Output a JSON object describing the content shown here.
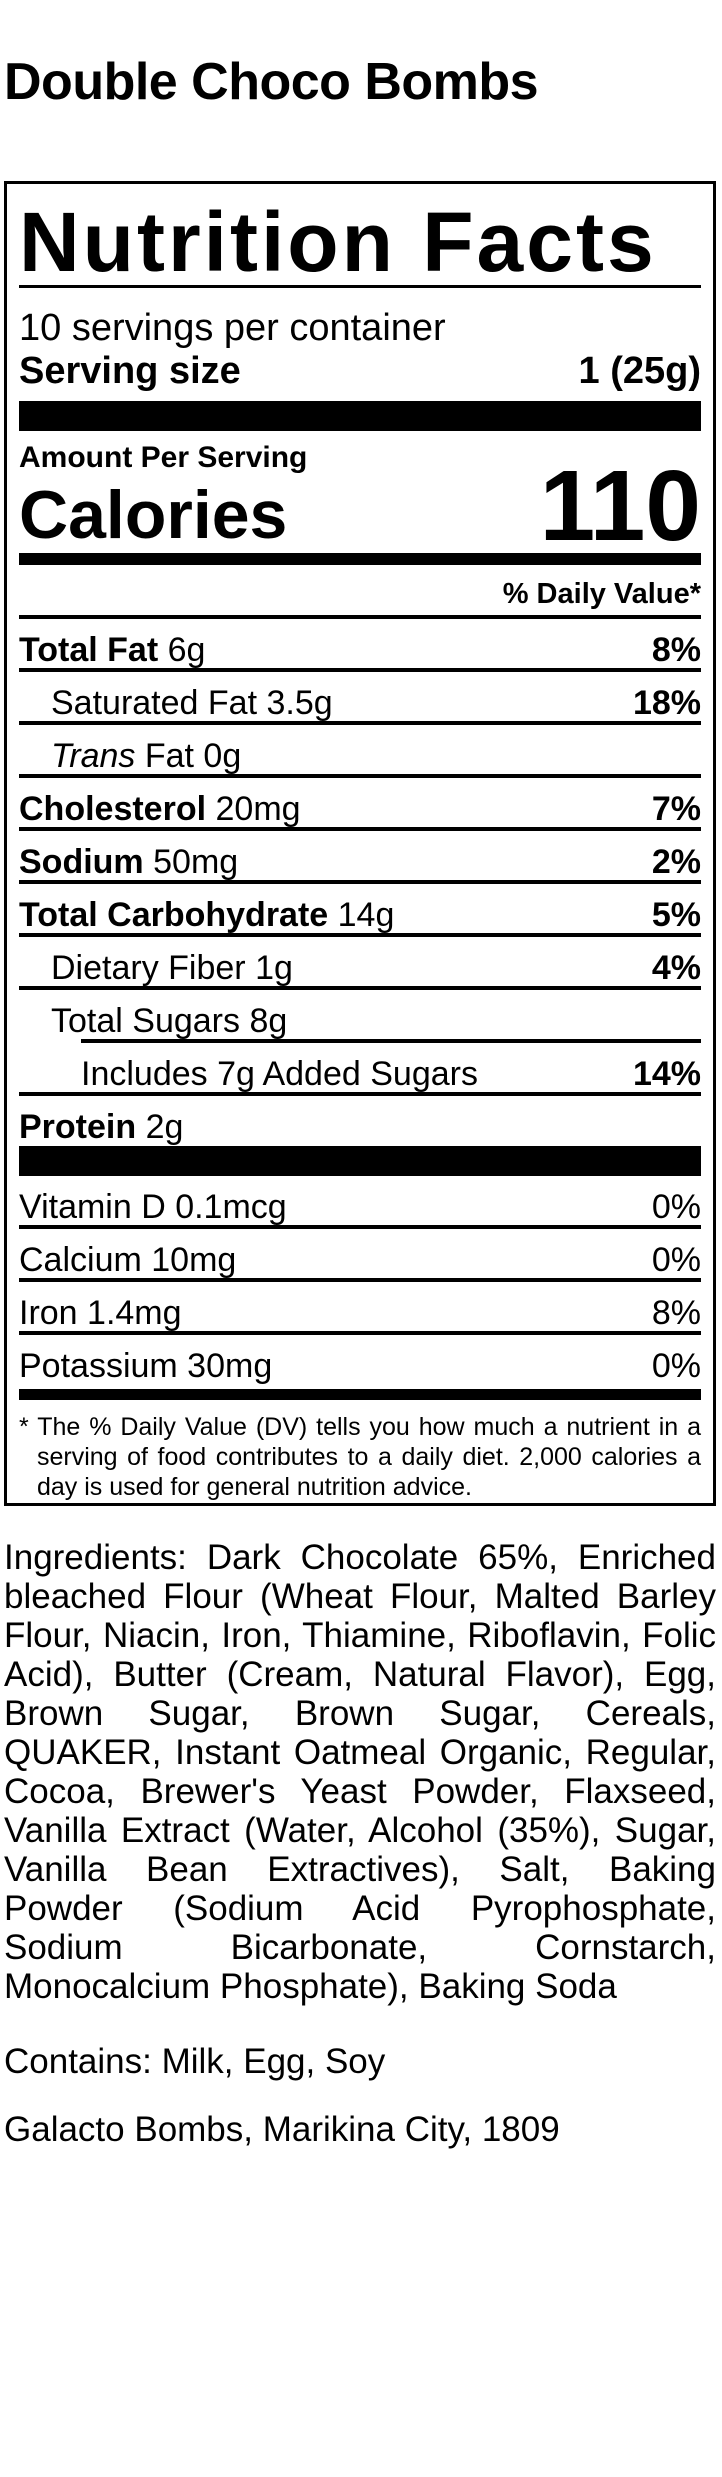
{
  "product_name": "Double Choco Bombs",
  "label": {
    "heading": "Nutrition Facts",
    "servings_per_container": "10 servings per container",
    "serving_size_label": "Serving size",
    "serving_size_value": "1 (25g)",
    "amount_per_serving": "Amount Per Serving",
    "calories_label": "Calories",
    "calories_value": "110",
    "daily_value_header": "% Daily Value*",
    "nutrients": [
      {
        "name": "Total Fat",
        "amount": "6g",
        "dv": "8%"
      },
      {
        "name": "Saturated Fat",
        "amount": "3.5g",
        "dv": "18%"
      },
      {
        "name": "Trans",
        "name_suffix": "Fat",
        "amount": "0g",
        "dv": ""
      },
      {
        "name": "Cholesterol",
        "amount": "20mg",
        "dv": "7%"
      },
      {
        "name": "Sodium",
        "amount": "50mg",
        "dv": "2%"
      },
      {
        "name": "Total Carbohydrate",
        "amount": "14g",
        "dv": "5%"
      },
      {
        "name": "Dietary Fiber",
        "amount": "1g",
        "dv": "4%"
      },
      {
        "name": "Total Sugars",
        "amount": "8g",
        "dv": ""
      },
      {
        "name": "Includes 7g Added Sugars",
        "amount": "",
        "dv": "14%"
      },
      {
        "name": "Protein",
        "amount": "2g",
        "dv": ""
      }
    ],
    "vitamins": [
      {
        "label": "Vitamin D 0.1mcg",
        "dv": "0%"
      },
      {
        "label": "Calcium 10mg",
        "dv": "0%"
      },
      {
        "label": "Iron 1.4mg",
        "dv": "8%"
      },
      {
        "label": "Potassium 30mg",
        "dv": "0%"
      }
    ],
    "footnote": "* The % Daily Value (DV) tells you how much a nutrient in a serving of food contributes to a daily diet. 2,000 calories a day is used for general nutrition advice."
  },
  "ingredients": "Ingredients: Dark Chocolate 65%, Enriched bleached Flour (Wheat Flour, Malted Barley Flour, Niacin, Iron, Thiamine, Riboflavin, Folic Acid), Butter (Cream, Natural Flavor), Egg, Brown Sugar, Brown Sugar, Cereals, QUAKER, Instant Oatmeal Organic, Regular, Cocoa, Brewer's Yeast Powder, Flaxseed, Vanilla Extract (Water, Alcohol (35%), Sugar, Vanilla Bean Extractives), Salt, Baking Powder (Sodium Acid Pyrophosphate, Sodium Bicarbonate, Cornstarch, Monocalcium Phosphate), Baking Soda",
  "contains": "Contains: Milk, Egg, Soy",
  "manufacturer": "Galacto Bombs, Marikina City, 1809"
}
